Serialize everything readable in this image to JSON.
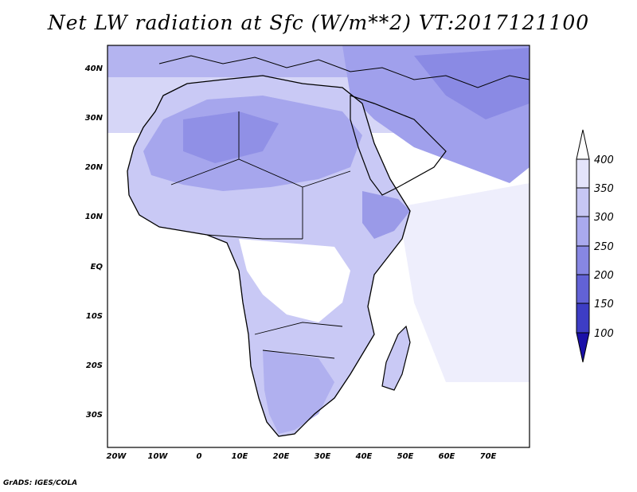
{
  "title": "Net LW radiation at Sfc (W/m**2) VT:2017121100",
  "footer": "GrADS: IGES/COLA",
  "map": {
    "lon_labels": [
      "20W",
      "10W",
      "0",
      "10E",
      "20E",
      "30E",
      "40E",
      "50E",
      "60E",
      "70E"
    ],
    "lat_labels": [
      "40N",
      "30N",
      "20N",
      "10N",
      "EQ",
      "10S",
      "20S",
      "30S"
    ]
  },
  "colorbar": {
    "levels": [
      "400",
      "350",
      "300",
      "250",
      "200",
      "150",
      "100"
    ],
    "colors": [
      "#ffffff",
      "#e4e4fb",
      "#c7c7f4",
      "#a9a9ee",
      "#8787e3",
      "#6262d6",
      "#3d3dc4",
      "#1a10a8"
    ]
  }
}
